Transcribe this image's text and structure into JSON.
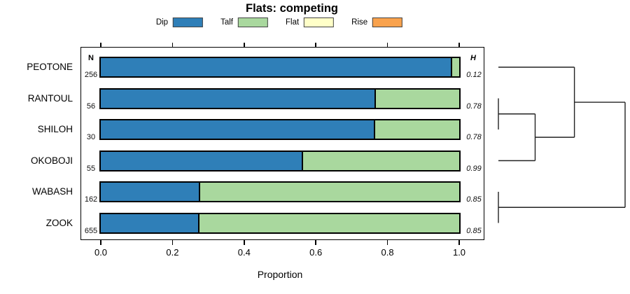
{
  "title": "Flats: competing",
  "legend": {
    "items": [
      {
        "label": "Dip",
        "color": "#2F7FB8"
      },
      {
        "label": "Talf",
        "color": "#A9D89E"
      },
      {
        "label": "Flat",
        "color": "#FFFFC8"
      },
      {
        "label": "Rise",
        "color": "#F9A24D"
      }
    ]
  },
  "chart_data": {
    "type": "bar",
    "stacked": true,
    "orientation": "horizontal",
    "title": "Flats: competing",
    "xlabel": "Proportion",
    "xlim": [
      0,
      1
    ],
    "x_tick_values": [
      0.0,
      0.2,
      0.4,
      0.6,
      0.8,
      1.0
    ],
    "x_tick_labels": [
      "0.0",
      "0.2",
      "0.4",
      "0.6",
      "0.8",
      "1.0"
    ],
    "grid": false,
    "legend_position": "top",
    "n_header": "N",
    "h_header": "H",
    "categories": [
      "PEOTONE",
      "RANTOUL",
      "SHILOH",
      "OKOBOJI",
      "WABASH",
      "ZOOK"
    ],
    "n_values": [
      256,
      56,
      30,
      55,
      162,
      655
    ],
    "h_values": [
      "0.12",
      "0.78",
      "0.78",
      "0.99",
      "0.85",
      "0.85"
    ],
    "series": [
      {
        "name": "Dip",
        "color": "#2F7FB8",
        "values": [
          0.977,
          0.764,
          0.762,
          0.56,
          0.273,
          0.271
        ]
      },
      {
        "name": "Talf",
        "color": "#A9D89E",
        "values": [
          0.023,
          0.236,
          0.238,
          0.44,
          0.727,
          0.729
        ]
      },
      {
        "name": "Flat",
        "color": "#FFFFC8",
        "values": [
          0,
          0,
          0,
          0,
          0,
          0
        ]
      },
      {
        "name": "Rise",
        "color": "#F9A24D",
        "values": [
          0,
          0,
          0,
          0,
          0,
          0
        ]
      }
    ],
    "dendrogram": {
      "leaves": [
        "PEOTONE",
        "RANTOUL",
        "SHILOH",
        "OKOBOJI",
        "WABASH",
        "ZOOK"
      ],
      "merges": [
        {
          "id": "m1",
          "children": [
            "RANTOUL",
            "SHILOH"
          ],
          "height": 0.0
        },
        {
          "id": "m2",
          "children": [
            "m1",
            "OKOBOJI"
          ],
          "height": 0.29
        },
        {
          "id": "m3",
          "children": [
            "PEOTONE",
            "m2"
          ],
          "height": 0.6
        },
        {
          "id": "m4",
          "children": [
            "WABASH",
            "ZOOK"
          ],
          "height": 0.0
        },
        {
          "id": "m5",
          "children": [
            "m3",
            "m4"
          ],
          "height": 1.0
        }
      ]
    }
  }
}
